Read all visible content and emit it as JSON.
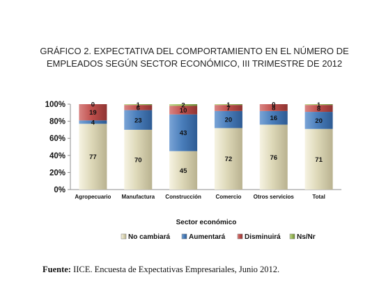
{
  "chart_data": {
    "type": "stacked-bar",
    "title_lines": [
      "GRÁFICO 2. EXPECTATIVA DEL COMPORTAMIENTO EN EL NÚMERO DE",
      "EMPLEADOS SEGÚN SECTOR ECONÓMICO, III TRIMESTRE DE 2012"
    ],
    "xlabel": "Sector económico",
    "categories": [
      "Agropecuario",
      "Manufactura",
      "Construcción",
      "Comercio",
      "Otros servicios",
      "Total"
    ],
    "series": [
      {
        "name": "No cambiará",
        "color": "#ddd8b8",
        "values": [
          77,
          70,
          45,
          72,
          76,
          71
        ]
      },
      {
        "name": "Aumentará",
        "color": "#4a7ebb",
        "values": [
          4,
          23,
          43,
          20,
          16,
          20
        ]
      },
      {
        "name": "Disminuirá",
        "color": "#c0504d",
        "values": [
          19,
          6,
          10,
          7,
          8,
          8
        ]
      },
      {
        "name": "Ns/Nr",
        "color": "#9bbb59",
        "values": [
          0,
          1,
          2,
          1,
          0,
          1
        ]
      }
    ],
    "yticks": [
      "0%",
      "20%",
      "40%",
      "60%",
      "80%",
      "100%"
    ],
    "ylim": [
      0,
      100
    ],
    "grid": false,
    "legend_position": "bottom"
  },
  "source": {
    "label": "Fuente:",
    "text": " IICE. Encuesta de Expectativas Empresariales, Junio  2012."
  }
}
